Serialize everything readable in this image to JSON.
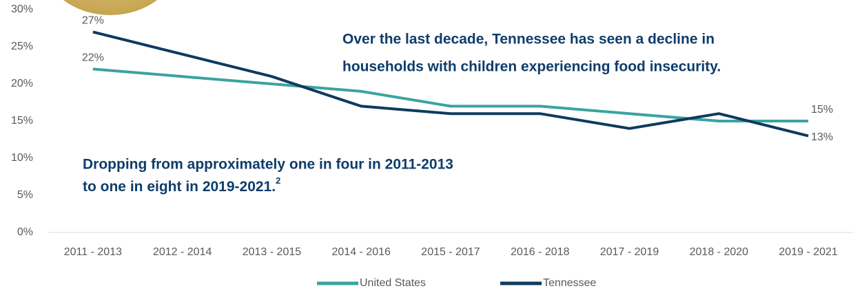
{
  "chart_data": {
    "type": "line",
    "categories": [
      "2011 - 2013",
      "2012 - 2014",
      "2013 - 2015",
      "2014 - 2016",
      "2015 - 2017",
      "2016 - 2018",
      "2017 - 2019",
      "2018 - 2020",
      "2019 - 2021"
    ],
    "series": [
      {
        "name": "United States",
        "color": "#3aa39f",
        "values": [
          22,
          21,
          20,
          19,
          17,
          17,
          16,
          15,
          15
        ],
        "value_labels": [
          "22%",
          null,
          null,
          null,
          null,
          null,
          null,
          null,
          "15%"
        ]
      },
      {
        "name": "Tennessee",
        "color": "#0e3a5f",
        "values": [
          27,
          24,
          21,
          17,
          16,
          16,
          14,
          16,
          13
        ],
        "value_labels": [
          "27%",
          null,
          null,
          null,
          null,
          null,
          null,
          null,
          "13%"
        ]
      }
    ],
    "ylim": [
      0,
      30
    ],
    "yticks": [
      {
        "value": 0,
        "label": "0%"
      },
      {
        "value": 5,
        "label": "5%"
      },
      {
        "value": 10,
        "label": "10%"
      },
      {
        "value": 15,
        "label": "15%"
      },
      {
        "value": 20,
        "label": "20%"
      },
      {
        "value": 25,
        "label": "25%"
      },
      {
        "value": 30,
        "label": "30%"
      }
    ],
    "grid": false,
    "legend": "bottom",
    "annotations": [
      {
        "lines": [
          "Over the last decade, Tennessee has seen a decline in",
          "households with children experiencing food insecurity."
        ]
      },
      {
        "lines": [
          "Dropping from approximately one in four in 2011-2013",
          "to one in eight in 2019-2021."
        ],
        "superscript": "2"
      }
    ]
  }
}
